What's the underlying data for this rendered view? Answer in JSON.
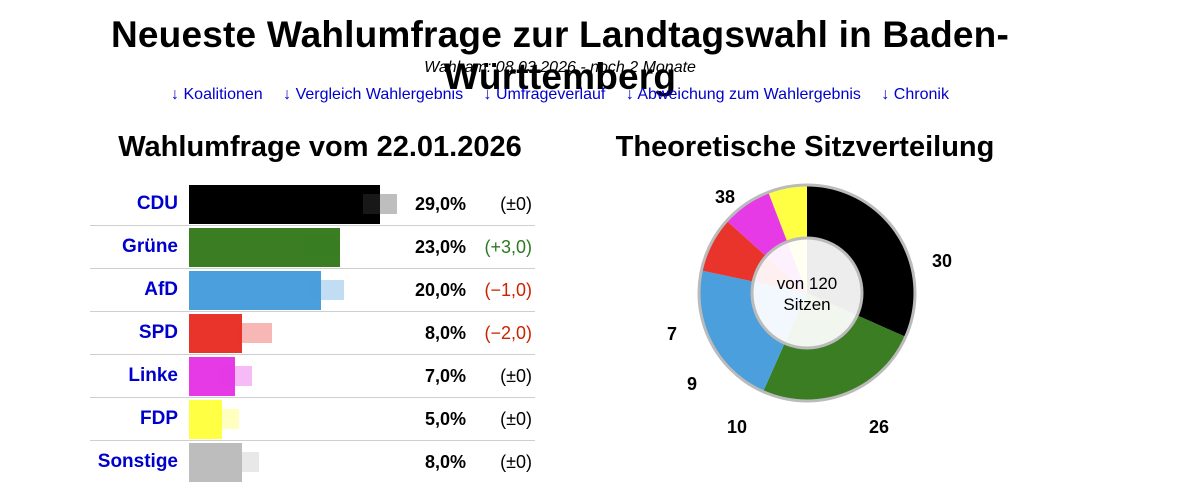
{
  "header": {
    "title": "Neueste Wahlumfrage zur Landtagswahl in Baden-Württemberg",
    "election_date": "Wahl am: 08.03.2026 - noch 2 Monate"
  },
  "nav": {
    "links": [
      "↓ Koalitionen",
      "↓ Vergleich Wahlergebnis",
      "↓ Umfrageverlauf",
      "↓ Abweichung zum Wahlergebnis",
      "↓ Chronik"
    ]
  },
  "chart_data": [
    {
      "type": "bar",
      "title": "Wahlumfrage vom 22.01.2026",
      "categories": [
        "CDU",
        "Grüne",
        "AfD",
        "SPD",
        "Linke",
        "FDP",
        "Sonstige"
      ],
      "values": [
        29.0,
        23.0,
        20.0,
        8.0,
        7.0,
        5.0,
        8.0
      ],
      "value_labels": [
        "29,0%",
        "23,0%",
        "20,0%",
        "8,0%",
        "7,0%",
        "5,0%",
        "8,0%"
      ],
      "previous_values": [
        29.0,
        20.0,
        21.0,
        10.0,
        7.0,
        5.0,
        8.0
      ],
      "changes": [
        "(±0)",
        "(+3,0)",
        "(−1,0)",
        "(−2,0)",
        "(±0)",
        "(±0)",
        "(±0)"
      ],
      "change_colors": [
        "#000000",
        "#2a7a1f",
        "#cc2200",
        "#cc2200",
        "#000000",
        "#000000",
        "#000000"
      ],
      "colors": [
        "#000000",
        "#3a7d22",
        "#4a9fdc",
        "#e8342a",
        "#e53ae6",
        "#ffff44",
        "#bdbdbd"
      ],
      "xlim": [
        0,
        29
      ]
    },
    {
      "type": "pie",
      "title": "Theoretische Sitzverteilung",
      "center_text": [
        "von 120",
        "Sitzen"
      ],
      "categories": [
        "CDU",
        "Grüne",
        "AfD",
        "SPD",
        "Linke",
        "FDP"
      ],
      "values": [
        38,
        30,
        26,
        10,
        9,
        7
      ],
      "labels": [
        "38",
        "30",
        "26",
        "10",
        "9",
        "7"
      ],
      "colors": [
        "#000000",
        "#3a7d22",
        "#4a9fdc",
        "#e8342a",
        "#e53ae6",
        "#ffff44"
      ],
      "total": 120
    }
  ]
}
